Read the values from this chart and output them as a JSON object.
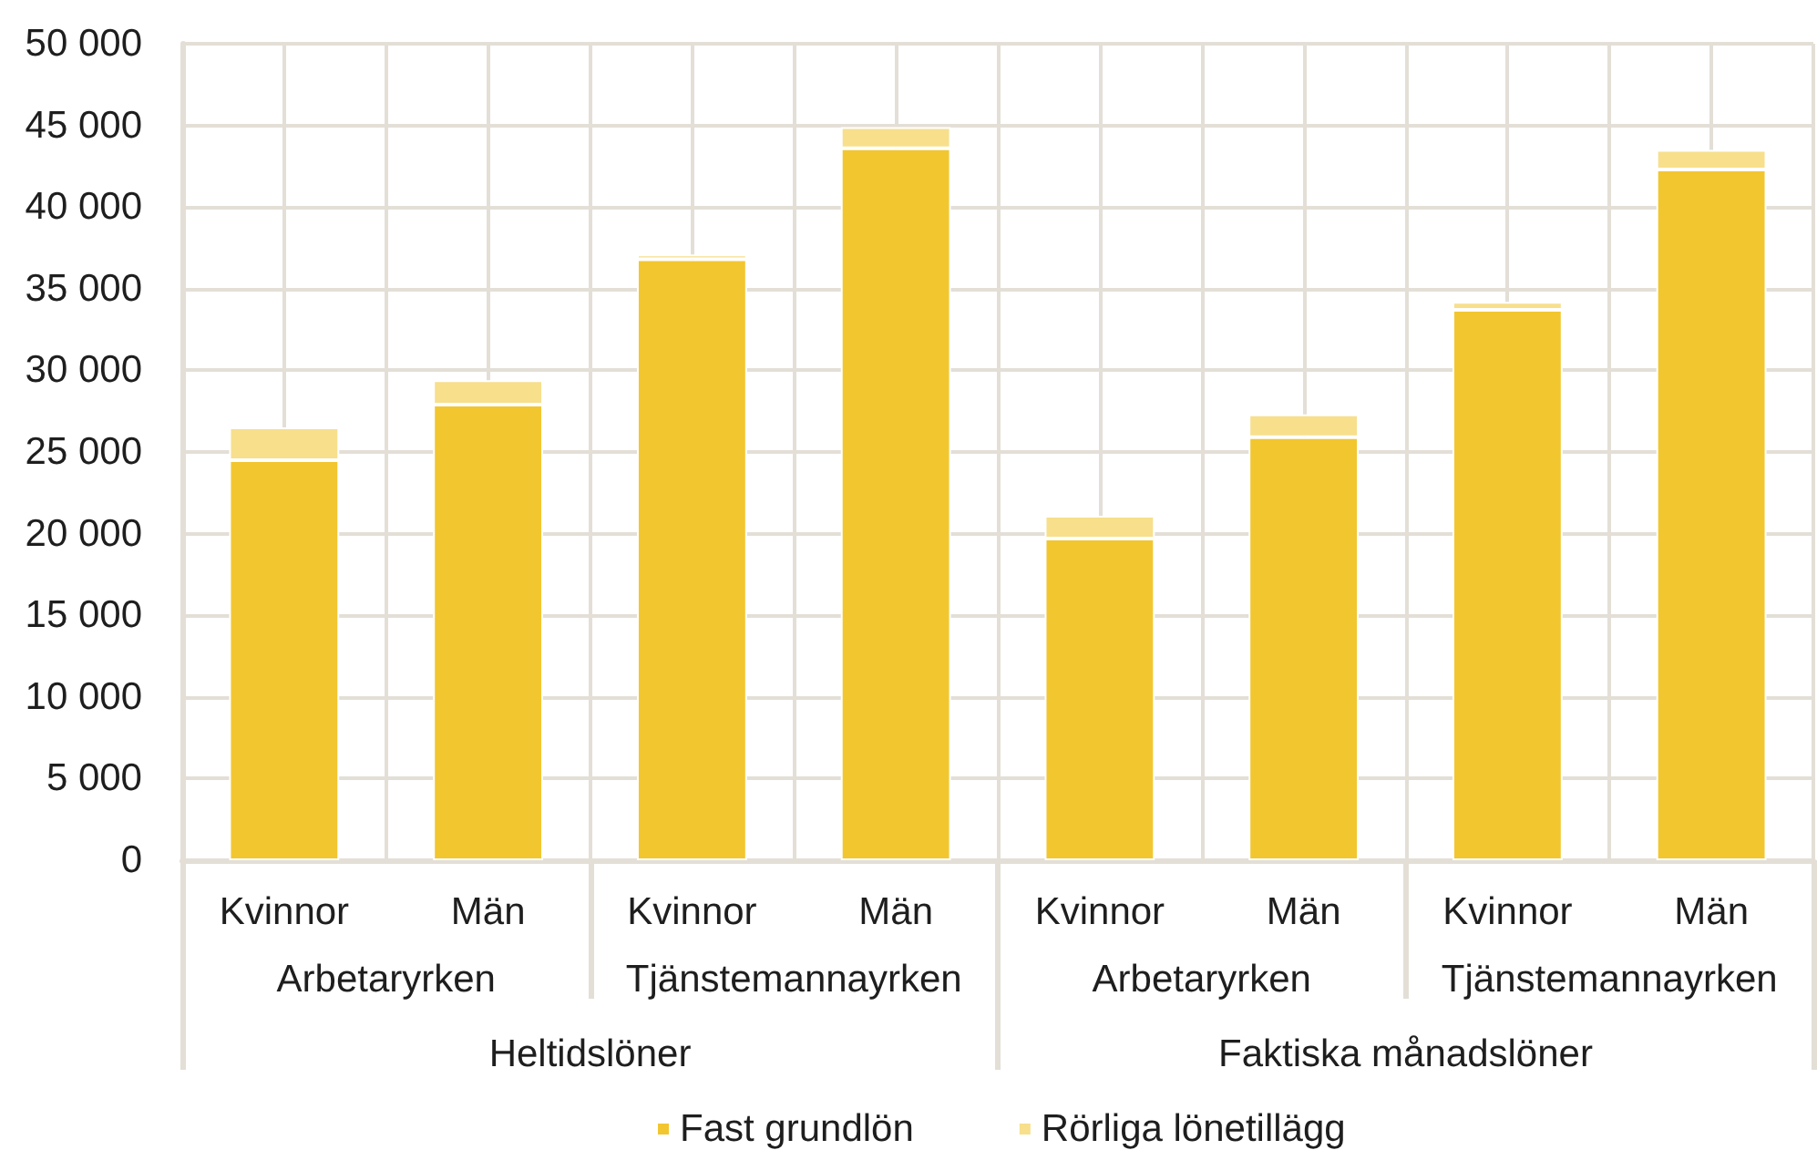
{
  "chart_data": {
    "type": "bar",
    "categories": [
      "Kvinnor",
      "Män",
      "Kvinnor",
      "Män",
      "Kvinnor",
      "Män",
      "Kvinnor",
      "Män"
    ],
    "series": [
      {
        "name": "Fast grundlön",
        "color": "#f2c62f",
        "values": [
          24500,
          27900,
          36800,
          43600,
          19700,
          25900,
          33700,
          42300
        ]
      },
      {
        "name": "Rörliga lönetillägg",
        "color": "#f7df8c",
        "values": [
          2000,
          1500,
          300,
          1300,
          1400,
          1400,
          500,
          1200
        ]
      }
    ],
    "stacked": true,
    "ylim": [
      0,
      50000
    ],
    "yticks": [
      0,
      {
        "value": 5000,
        "label": "5 000"
      },
      {
        "value": 10000,
        "label": "10 000"
      },
      {
        "value": 15000,
        "label": "15 000"
      },
      {
        "value": 20000,
        "label": "20 000"
      },
      {
        "value": 25000,
        "label": "25 000"
      },
      {
        "value": 30000,
        "label": "30 000"
      },
      {
        "value": 35000,
        "label": "35 000"
      },
      {
        "value": 40000,
        "label": "40 000"
      },
      {
        "value": 45000,
        "label": "45 000"
      },
      {
        "value": 50000,
        "label": "50 000"
      }
    ],
    "grid": true,
    "legend": "bottom",
    "annotations": [
      "Arbetaryrken",
      "Tjänstemannayrken",
      "Arbetaryrken",
      "Tjänstemannayrken",
      "Heltidslöner",
      "Faktiska månadslöner"
    ]
  }
}
